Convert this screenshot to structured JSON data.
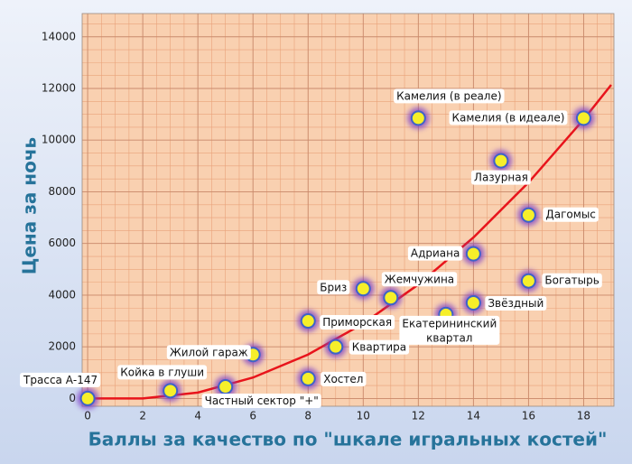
{
  "chart_data": {
    "type": "scatter",
    "x_label": "Баллы за качество по \"шкале игральных костей\"",
    "y_label": "Цена за ночь",
    "labels": [
      "Трасса А-147",
      "Койка в глуши",
      "Частный сектор \"+\"",
      "Жилой гараж",
      "Хостел",
      "Приморская",
      "Квартира",
      "Бриз",
      "Жемчужина",
      "Екатерининский квартал",
      "Адриана",
      "Звёздный",
      "Камелия (в реале)",
      "Камелия (в идеале)",
      "Лазурная",
      "Дагомыс",
      "Богатырь"
    ],
    "x": [
      0,
      3,
      5,
      6,
      8,
      8,
      9,
      10,
      11,
      13,
      14,
      14,
      12,
      18,
      15,
      16,
      16
    ],
    "values": [
      0,
      300,
      450,
      1700,
      770,
      3000,
      2000,
      4250,
      3900,
      3250,
      5600,
      3700,
      10850,
      10850,
      9200,
      7100,
      4550
    ],
    "color": "#f6ef2a",
    "trendline": {
      "color": "#e8141b",
      "x": [
        0,
        2,
        4,
        6,
        8,
        10,
        12,
        14,
        16,
        18,
        19
      ],
      "values": [
        0,
        0,
        230,
        810,
        1700,
        2900,
        4410,
        6230,
        8360,
        10800,
        12140
      ]
    },
    "xlim": [
      -0.2,
      19.1
    ],
    "xticks": [
      0,
      2,
      4,
      6,
      8,
      10,
      12,
      14,
      16,
      18
    ],
    "ylim": [
      -300,
      14900
    ],
    "yticks": [
      0,
      2000,
      4000,
      6000,
      8000,
      10000,
      12000,
      14000
    ],
    "grid": true
  }
}
